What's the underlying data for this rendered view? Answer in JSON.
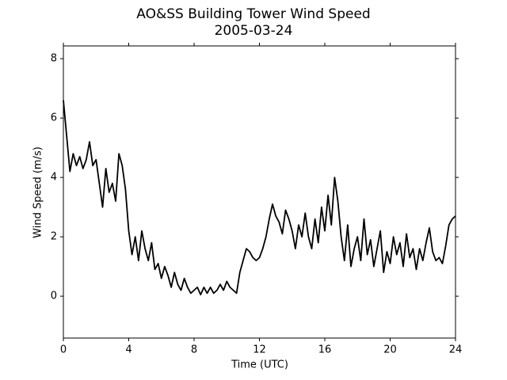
{
  "chart_data": {
    "type": "line",
    "title": "AO&SS Building Tower Wind Speed",
    "subtitle": "2005-03-24",
    "x_label": "Time (UTC)",
    "y_label": "Wind Speed (m/s)",
    "xlim": [
      0,
      24
    ],
    "xticks": [
      0,
      4,
      8,
      12,
      16,
      20,
      24
    ],
    "ylim": [
      -1.41,
      8.43
    ],
    "yticks": [
      0,
      2,
      4,
      6,
      8
    ],
    "color": "#000000",
    "x": [
      0,
      0.2,
      0.4,
      0.6,
      0.8,
      1,
      1.2,
      1.4,
      1.6,
      1.8,
      2,
      2.2,
      2.4,
      2.6,
      2.8,
      3,
      3.2,
      3.4,
      3.6,
      3.8,
      4,
      4.2,
      4.4,
      4.6,
      4.8,
      5,
      5.2,
      5.4,
      5.6,
      5.8,
      6,
      6.2,
      6.4,
      6.6,
      6.8,
      7,
      7.2,
      7.4,
      7.6,
      7.8,
      8,
      8.2,
      8.4,
      8.6,
      8.8,
      9,
      9.2,
      9.4,
      9.6,
      9.8,
      10,
      10.2,
      10.4,
      10.6,
      10.8,
      11,
      11.2,
      11.4,
      11.6,
      11.8,
      12,
      12.2,
      12.4,
      12.6,
      12.8,
      13,
      13.2,
      13.4,
      13.6,
      13.8,
      14,
      14.2,
      14.4,
      14.6,
      14.8,
      15,
      15.2,
      15.4,
      15.6,
      15.8,
      16,
      16.2,
      16.4,
      16.6,
      16.8,
      17,
      17.2,
      17.4,
      17.6,
      17.8,
      18,
      18.2,
      18.4,
      18.6,
      18.8,
      19,
      19.2,
      19.4,
      19.6,
      19.8,
      20,
      20.2,
      20.4,
      20.6,
      20.8,
      21,
      21.2,
      21.4,
      21.6,
      21.8,
      22,
      22.2,
      22.4,
      22.6,
      22.8,
      23,
      23.2,
      23.4,
      23.6,
      23.8,
      24
    ],
    "values": [
      6.6,
      5.4,
      4.2,
      4.8,
      4.4,
      4.7,
      4.3,
      4.6,
      5.2,
      4.4,
      4.6,
      3.8,
      3.0,
      4.3,
      3.5,
      3.8,
      3.2,
      4.8,
      4.4,
      3.6,
      2.2,
      1.4,
      2.0,
      1.2,
      2.2,
      1.6,
      1.2,
      1.8,
      0.9,
      1.1,
      0.6,
      1.0,
      0.7,
      0.3,
      0.8,
      0.4,
      0.2,
      0.6,
      0.3,
      0.1,
      0.2,
      0.3,
      0.05,
      0.3,
      0.1,
      0.3,
      0.1,
      0.2,
      0.4,
      0.2,
      0.5,
      0.3,
      0.2,
      0.1,
      0.8,
      1.2,
      1.6,
      1.5,
      1.3,
      1.2,
      1.3,
      1.6,
      2.0,
      2.6,
      3.1,
      2.7,
      2.5,
      2.1,
      2.9,
      2.6,
      2.2,
      1.6,
      2.4,
      2.0,
      2.8,
      2.0,
      1.6,
      2.6,
      1.8,
      3.0,
      2.2,
      3.4,
      2.4,
      4.0,
      3.2,
      2.0,
      1.2,
      2.4,
      1.0,
      1.6,
      2.0,
      1.2,
      2.6,
      1.4,
      1.9,
      1.0,
      1.6,
      2.2,
      0.8,
      1.5,
      1.1,
      2.0,
      1.4,
      1.8,
      1.0,
      2.1,
      1.3,
      1.6,
      0.9,
      1.6,
      1.2,
      1.8,
      2.3,
      1.5,
      1.2,
      1.3,
      1.1,
      1.7,
      2.4,
      2.6,
      2.7
    ]
  }
}
